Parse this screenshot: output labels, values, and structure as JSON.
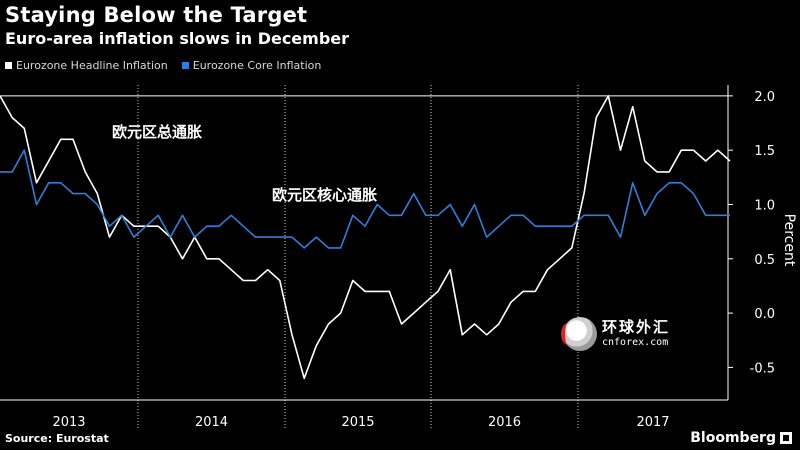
{
  "title": "Staying Below the Target",
  "subtitle": "Euro-area inflation slows in December",
  "legend": {
    "headline": "Eurozone Headline Inflation",
    "core": "Eurozone Core Inflation"
  },
  "source": "Source: Eurostat",
  "brand": "Bloomberg",
  "watermark": {
    "cn": "环球外汇",
    "en": "cnforex.com"
  },
  "colors": {
    "headline": "#ffffff",
    "core": "#2f7ed8",
    "background": "#000000",
    "axis": "#ffffff",
    "grid": "#ffffff"
  },
  "chart_data": {
    "type": "line",
    "ylabel": "Percent",
    "ylim": [
      -0.8,
      2.1
    ],
    "yticks": [
      2.0,
      1.5,
      1.0,
      0.5,
      0.0,
      -0.5
    ],
    "ytick_labels": [
      "2.0",
      "1.5",
      "1.0",
      "0.5",
      "0.0",
      "-0.5"
    ],
    "x_start": "2012-12",
    "x_end": "2017-12",
    "years": [
      "2013",
      "2014",
      "2015",
      "2016",
      "2017"
    ],
    "reference_line": 2.0,
    "annotations": [
      {
        "text": "欧元区总通胀",
        "series": "headline"
      },
      {
        "text": "欧元区核心通胀",
        "series": "core"
      }
    ],
    "grid": true,
    "legend_position": "top-left",
    "series": [
      {
        "name": "Eurozone Headline Inflation",
        "key": "headline",
        "values": [
          2.0,
          1.8,
          1.7,
          1.2,
          1.4,
          1.6,
          1.6,
          1.3,
          1.1,
          0.7,
          0.9,
          0.8,
          0.8,
          0.8,
          0.7,
          0.5,
          0.7,
          0.5,
          0.5,
          0.4,
          0.3,
          0.3,
          0.4,
          0.3,
          -0.2,
          -0.6,
          -0.3,
          -0.1,
          0.0,
          0.3,
          0.2,
          0.2,
          0.2,
          -0.1,
          0.0,
          0.1,
          0.2,
          0.4,
          -0.2,
          -0.1,
          -0.2,
          -0.1,
          0.1,
          0.2,
          0.2,
          0.4,
          0.5,
          0.6,
          1.1,
          1.8,
          2.0,
          1.5,
          1.9,
          1.4,
          1.3,
          1.3,
          1.5,
          1.5,
          1.4,
          1.5,
          1.4
        ]
      },
      {
        "name": "Eurozone Core Inflation",
        "key": "core",
        "values": [
          1.3,
          1.3,
          1.5,
          1.0,
          1.2,
          1.2,
          1.1,
          1.1,
          1.0,
          0.8,
          0.9,
          0.7,
          0.8,
          0.9,
          0.7,
          0.9,
          0.7,
          0.8,
          0.8,
          0.9,
          0.8,
          0.7,
          0.7,
          0.7,
          0.7,
          0.6,
          0.7,
          0.6,
          0.6,
          0.9,
          0.8,
          1.0,
          0.9,
          0.9,
          1.1,
          0.9,
          0.9,
          1.0,
          0.8,
          1.0,
          0.7,
          0.8,
          0.9,
          0.9,
          0.8,
          0.8,
          0.8,
          0.8,
          0.9,
          0.9,
          0.9,
          0.7,
          1.2,
          0.9,
          1.1,
          1.2,
          1.2,
          1.1,
          0.9,
          0.9,
          0.9
        ]
      }
    ]
  }
}
